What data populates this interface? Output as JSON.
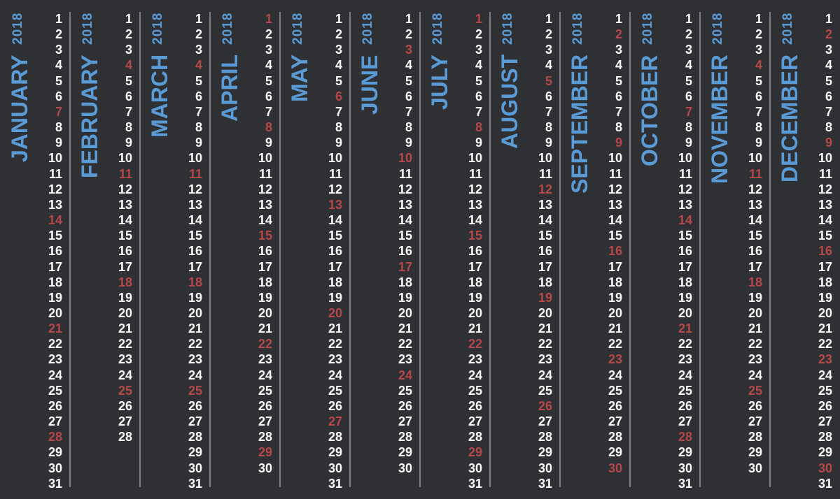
{
  "colors": {
    "background": "#2f3033",
    "month_title": "#5b9bd5",
    "weekday": "#ffffff",
    "sunday": "#b5484a",
    "separator": "#7d7d7f"
  },
  "months": [
    {
      "name": "JANUARY",
      "year": "2018",
      "days": 31,
      "sundays": [
        7,
        14,
        21,
        28
      ]
    },
    {
      "name": "FEBRUARY",
      "year": "2018",
      "days": 28,
      "sundays": [
        4,
        11,
        18,
        25
      ]
    },
    {
      "name": "MARCH",
      "year": "2018",
      "days": 31,
      "sundays": [
        4,
        11,
        18,
        25
      ]
    },
    {
      "name": "APRIL",
      "year": "2018",
      "days": 30,
      "sundays": [
        1,
        8,
        15,
        22,
        29
      ]
    },
    {
      "name": "MAY",
      "year": "2018",
      "days": 31,
      "sundays": [
        6,
        13,
        20,
        27
      ]
    },
    {
      "name": "JUNE",
      "year": "2018",
      "days": 30,
      "sundays": [
        3,
        10,
        17,
        24
      ]
    },
    {
      "name": "JULY",
      "year": "2018",
      "days": 31,
      "sundays": [
        1,
        8,
        15,
        22,
        29
      ]
    },
    {
      "name": "AUGUST",
      "year": "2018",
      "days": 31,
      "sundays": [
        5,
        12,
        19,
        26
      ]
    },
    {
      "name": "SEPTEMBER",
      "year": "2018",
      "days": 30,
      "sundays": [
        2,
        9,
        16,
        23,
        30
      ]
    },
    {
      "name": "OCTOBER",
      "year": "2018",
      "days": 31,
      "sundays": [
        7,
        14,
        21,
        28
      ]
    },
    {
      "name": "NOVEMBER",
      "year": "2018",
      "days": 30,
      "sundays": [
        4,
        11,
        18,
        25
      ]
    },
    {
      "name": "DECEMBER",
      "year": "2018",
      "days": 31,
      "sundays": [
        2,
        9,
        16,
        23,
        30
      ]
    }
  ]
}
